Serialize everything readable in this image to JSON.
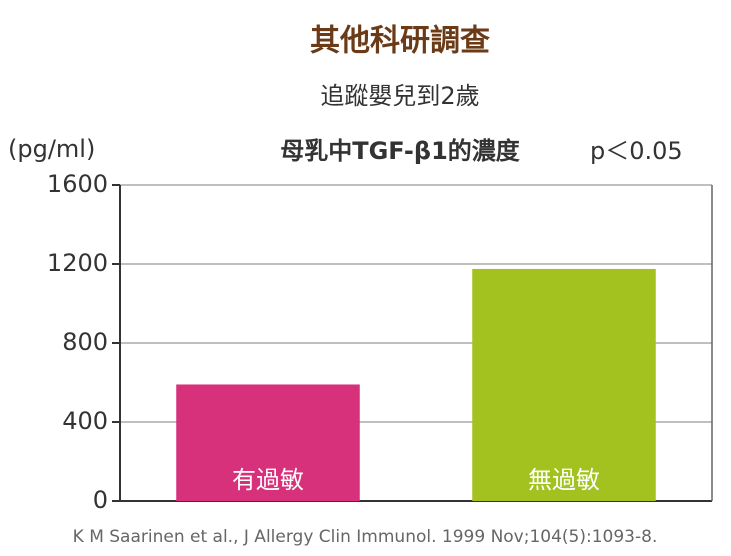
{
  "chart_data": {
    "type": "bar",
    "title": "其他科研調查",
    "subtitle": "追蹤嬰兒到2歲",
    "chart_title": "母乳中TGF-β1的濃度",
    "annotation": "p＜0.05",
    "y_label": "(pg/ml)",
    "source": "K M Saarinen et al., J Allergy Clin Immunol. 1999 Nov;104(5):1093-8.",
    "categories": [
      "有過敏",
      "無過敏"
    ],
    "values": [
      590,
      1175
    ],
    "colors": [
      "#d6317a",
      "#a3c21f"
    ],
    "ylim": [
      0,
      1600
    ],
    "yticks": [
      0,
      400,
      800,
      1200,
      1600
    ],
    "grid": true
  }
}
